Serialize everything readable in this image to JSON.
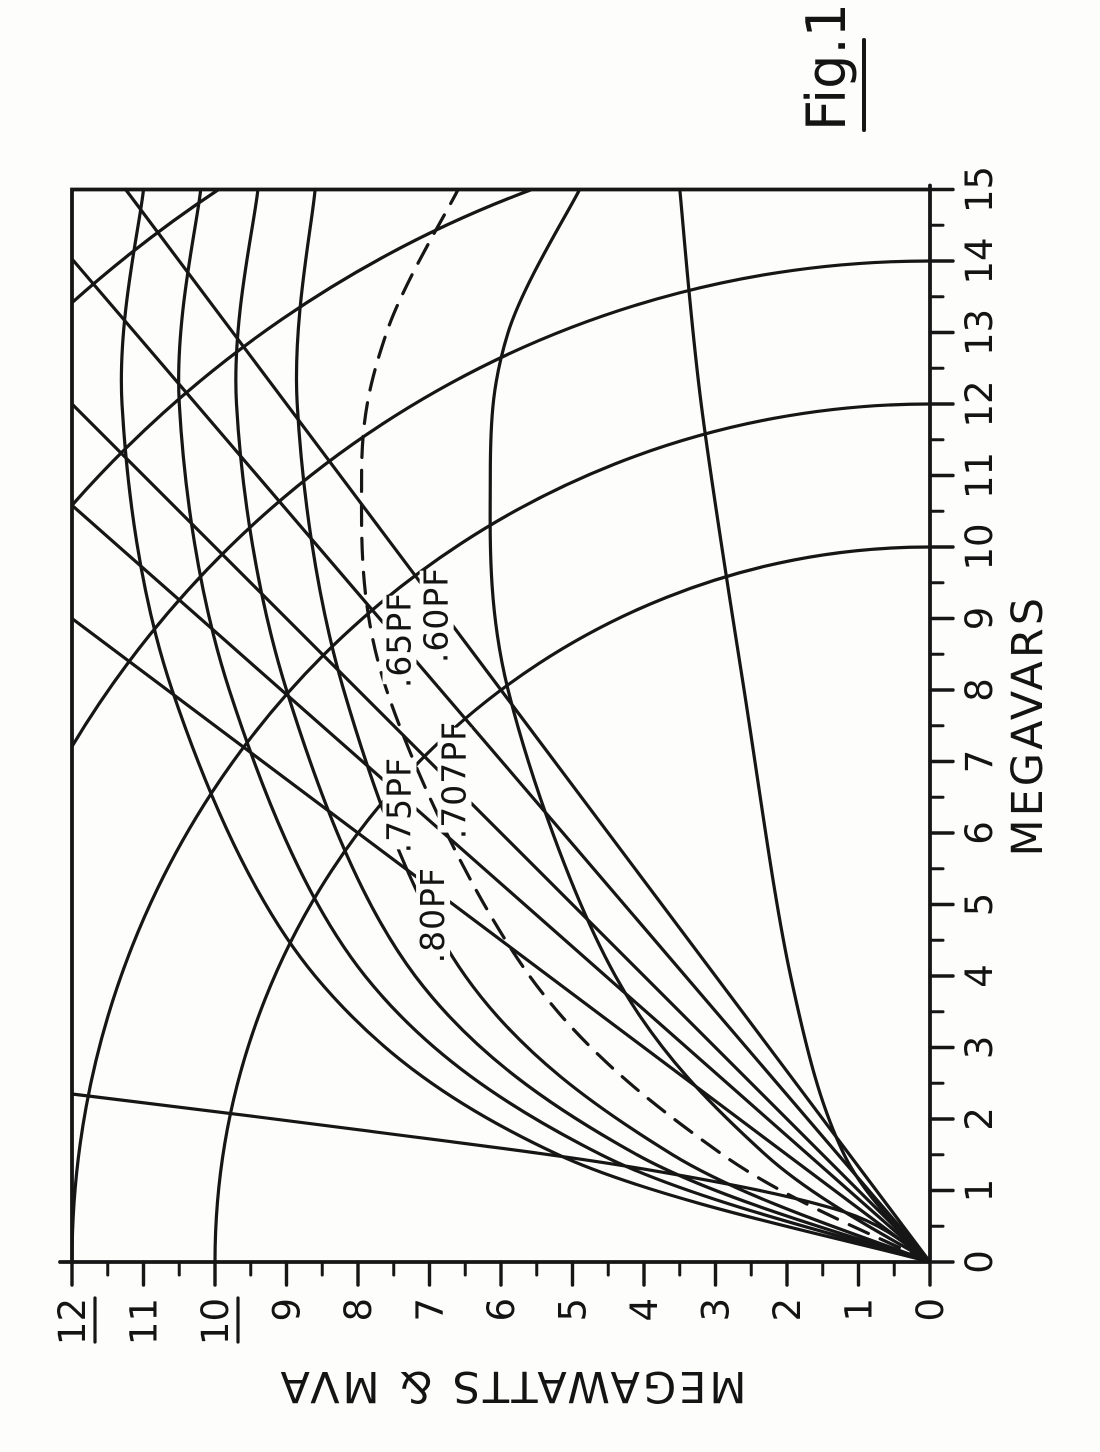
{
  "figure": {
    "label": "Fig.1"
  },
  "chart_data": {
    "type": "line",
    "title": "",
    "xlabel": "MEGAVARS",
    "ylabel": "MEGAWATTS & MVA",
    "xlim": [
      0,
      15
    ],
    "ylim": [
      0,
      12
    ],
    "x_ticks": [
      0,
      1,
      2,
      3,
      4,
      5,
      6,
      7,
      8,
      9,
      10,
      11,
      12,
      13,
      14,
      15
    ],
    "y_ticks": [
      0,
      1,
      2,
      3,
      4,
      5,
      6,
      7,
      8,
      9,
      10,
      11,
      12
    ],
    "underlined_y_ticks": [
      10,
      12
    ],
    "minor_tick_step": 0.5,
    "grid": false,
    "legend": "none",
    "pf_lines": [
      {
        "label": ".80PF",
        "pf": 0.8,
        "end_q": 9.0,
        "end_p": 12.0,
        "label_q": 4.85,
        "label_p": 6.95
      },
      {
        "label": ".75PF",
        "pf": 0.75,
        "end_q": 10.583,
        "end_p": 12.0,
        "label_q": 6.39,
        "label_p": 7.42
      },
      {
        "label": ".707PF",
        "pf": 0.707,
        "end_q": 12.0,
        "end_p": 12.0,
        "label_q": 6.74,
        "label_p": 6.65
      },
      {
        "label": ".65PF",
        "pf": 0.65,
        "end_q": 14.028,
        "end_p": 12.0,
        "label_q": 8.7,
        "label_p": 7.42
      },
      {
        "label": ".60PF",
        "pf": 0.6,
        "end_q": 15.0,
        "end_p": 11.25,
        "label_q": 9.05,
        "label_p": 6.9
      }
    ],
    "mva_arcs": {
      "center": [
        0,
        0
      ],
      "radii_mva": [
        10,
        12,
        14,
        16,
        18
      ]
    },
    "capability_curves": [
      {
        "name": "curve-1",
        "dashed": false,
        "points": [
          [
            0,
            0
          ],
          [
            0.7,
            1.2
          ],
          [
            1.3,
            4.0
          ],
          [
            1.85,
            8.0
          ],
          [
            2.35,
            12.0
          ]
        ]
      },
      {
        "name": "curve-2",
        "dashed": false,
        "points": [
          [
            0,
            0
          ],
          [
            1.5,
            5.2
          ],
          [
            4,
            8.6
          ],
          [
            8,
            10.6
          ],
          [
            12,
            11.3
          ],
          [
            15,
            11.0
          ]
        ]
      },
      {
        "name": "curve-3",
        "dashed": false,
        "points": [
          [
            0,
            0
          ],
          [
            1.5,
            4.6
          ],
          [
            4,
            7.9
          ],
          [
            8,
            9.8
          ],
          [
            12,
            10.5
          ],
          [
            15,
            10.2
          ]
        ]
      },
      {
        "name": "curve-4",
        "dashed": false,
        "points": [
          [
            0,
            0
          ],
          [
            1.5,
            4.1
          ],
          [
            4,
            7.2
          ],
          [
            8,
            9.0
          ],
          [
            12,
            9.7
          ],
          [
            15,
            9.4
          ]
        ]
      },
      {
        "name": "curve-5",
        "dashed": false,
        "points": [
          [
            0,
            0
          ],
          [
            1.5,
            3.6
          ],
          [
            4,
            6.5
          ],
          [
            8,
            8.2
          ],
          [
            12,
            8.85
          ],
          [
            15,
            8.6
          ]
        ]
      },
      {
        "name": "curve-6",
        "dashed": true,
        "points": [
          [
            0,
            0
          ],
          [
            1.5,
            2.9
          ],
          [
            4,
            5.6
          ],
          [
            8,
            7.6
          ],
          [
            11,
            7.95
          ],
          [
            13,
            7.6
          ],
          [
            15,
            6.6
          ]
        ]
      },
      {
        "name": "curve-7",
        "dashed": false,
        "points": [
          [
            0,
            0
          ],
          [
            1.5,
            2.3
          ],
          [
            4,
            4.4
          ],
          [
            8,
            5.9
          ],
          [
            11,
            6.15
          ],
          [
            13,
            5.9
          ],
          [
            15,
            4.9
          ]
        ]
      },
      {
        "name": "curve-8",
        "dashed": false,
        "points": [
          [
            0,
            0
          ],
          [
            1.5,
            1.2
          ],
          [
            4,
            1.95
          ],
          [
            8,
            2.6
          ],
          [
            12,
            3.2
          ],
          [
            15,
            3.5
          ]
        ]
      }
    ],
    "ink_color": "#161616",
    "background_color": "#fdfdfc"
  },
  "orientation": {
    "rotation_deg": -90,
    "note": "scanned figure printed sideways on portrait page"
  }
}
